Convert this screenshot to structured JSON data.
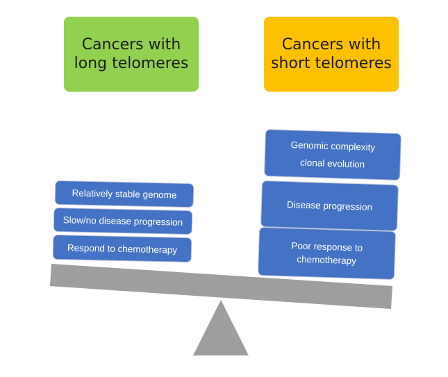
{
  "headers": {
    "long": {
      "line1": "Cancers with",
      "line2": "long telomeres",
      "color": "#92d050"
    },
    "short": {
      "line1": "Cancers with",
      "line2": "short telomeres",
      "color": "#ffc000"
    }
  },
  "left_cards": [
    {
      "label": "Relatively stable genome"
    },
    {
      "label": "Slow/no disease progression"
    },
    {
      "label": "Respond to chemotherapy"
    }
  ],
  "right_cards": [
    {
      "line1": "Genomic complexity",
      "line2": "clonal evolution"
    },
    {
      "line1": "Disease progression"
    },
    {
      "line1": "Poor response to",
      "line2": "chemotherapy"
    }
  ],
  "colors": {
    "card": "#4472c4",
    "beam": "#9e9e9e",
    "fulcrum": "#9e9e9e"
  }
}
